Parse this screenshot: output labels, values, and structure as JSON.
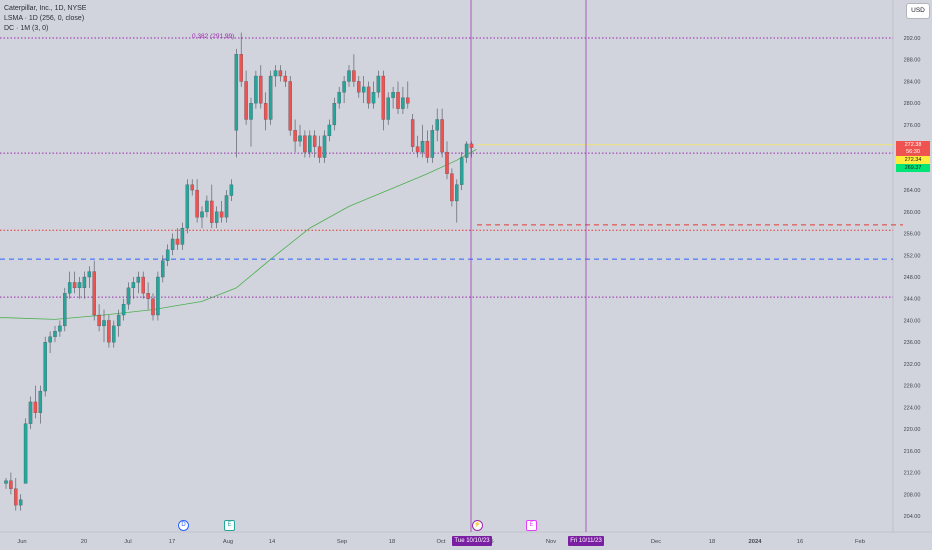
{
  "legend": {
    "symbol": "Caterpillar, Inc., 1D, NYSE",
    "indicator1": "LSMA · 1D (256, 0, close)",
    "indicator2": "DC · 1M (3, 0)"
  },
  "currency_button": "USD",
  "fib_label": "0.382 (291.99)",
  "price_axis": {
    "ticks": [
      "292.00",
      "288.00",
      "284.00",
      "280.00",
      "276.00",
      "272.00",
      "268.00",
      "264.00",
      "260.00",
      "256.00",
      "252.00",
      "248.00",
      "244.00",
      "240.00",
      "236.00",
      "232.00",
      "228.00",
      "224.00",
      "220.00",
      "216.00",
      "212.00",
      "208.00",
      "204.00"
    ],
    "tags": [
      {
        "text": "272.38",
        "bg": "#ef5350",
        "color": "#ffffff"
      },
      {
        "text": "56:30",
        "bg": "#ef5350",
        "color": "#ffffff"
      },
      {
        "text": "272.34",
        "bg": "#ffeb3b",
        "color": "#131722"
      },
      {
        "text": "269.37",
        "bg": "#00e676",
        "color": "#131722"
      }
    ]
  },
  "time_axis": {
    "ticks": [
      "Jun",
      "20",
      "Jul",
      "17",
      "Aug",
      "14",
      "Sep",
      "18",
      "Oct",
      "5",
      "Nov",
      "Dec",
      "18",
      "2024",
      "16",
      "Feb"
    ]
  },
  "crosshair_dates": [
    "Tue 10/10/23",
    "Fri 10/11/23"
  ],
  "event_markers": [
    "D",
    "E",
    "⚡",
    "E"
  ],
  "colors": {
    "background": "#d1d4dc",
    "candle_up": "#26a69a",
    "candle_down": "#ef5350",
    "lsma": "#4caf50",
    "fib": "#9c27b0",
    "dc_red": "#e53935",
    "dc_blue": "#2962ff"
  },
  "chart_data": {
    "type": "candlestick",
    "title": "Caterpillar, Inc., 1D, NYSE",
    "ylim": [
      202,
      294
    ],
    "horizontal_levels": [
      {
        "price": 291.99,
        "style": "dotted",
        "color": "#9c27b0"
      },
      {
        "price": 270.8,
        "style": "dotted",
        "color": "#9c27b0"
      },
      {
        "price": 256.6,
        "style": "dotted",
        "color": "#e53935"
      },
      {
        "price": 251.3,
        "style": "dashed",
        "color": "#2962ff"
      },
      {
        "price": 244.3,
        "style": "dotted",
        "color": "#9c27b0"
      },
      {
        "price": 257.6,
        "style": "dashed",
        "color": "#e53935",
        "partial": true
      }
    ],
    "candles": [
      [
        210,
        211,
        209,
        210.5
      ],
      [
        210.5,
        212,
        208,
        209
      ],
      [
        209,
        211,
        205,
        206
      ],
      [
        206,
        208,
        205,
        207
      ],
      [
        210,
        222,
        210,
        221
      ],
      [
        221,
        226,
        220,
        225
      ],
      [
        225,
        228,
        222,
        223
      ],
      [
        223,
        228,
        221,
        227
      ],
      [
        227,
        237,
        226,
        236
      ],
      [
        236,
        238,
        234,
        237
      ],
      [
        237,
        239,
        236,
        238
      ],
      [
        238,
        240,
        237,
        239
      ],
      [
        239,
        246,
        238,
        245
      ],
      [
        245,
        249,
        244,
        247
      ],
      [
        247,
        249,
        245,
        246
      ],
      [
        246,
        248,
        244,
        247
      ],
      [
        246,
        249,
        244,
        248
      ],
      [
        248,
        250,
        246,
        249
      ],
      [
        249,
        251,
        240,
        241
      ],
      [
        241,
        243,
        238,
        239
      ],
      [
        239,
        242,
        236,
        240
      ],
      [
        240,
        241,
        235,
        236
      ],
      [
        236,
        240,
        235,
        239
      ],
      [
        239,
        242,
        237,
        241
      ],
      [
        241,
        244,
        240,
        243
      ],
      [
        243,
        247,
        242,
        246
      ],
      [
        246,
        248,
        244,
        247
      ],
      [
        247,
        249,
        245,
        248
      ],
      [
        248,
        249,
        244,
        245
      ],
      [
        245,
        247,
        242,
        244
      ],
      [
        244,
        245,
        240,
        241
      ],
      [
        241,
        249,
        240,
        248
      ],
      [
        248,
        252,
        247,
        251
      ],
      [
        251,
        254,
        250,
        253
      ],
      [
        253,
        256,
        252,
        255
      ],
      [
        255,
        257,
        253,
        254
      ],
      [
        254,
        258,
        253,
        257
      ],
      [
        257,
        266,
        256,
        265
      ],
      [
        265,
        266,
        263,
        264
      ],
      [
        264,
        266,
        258,
        259
      ],
      [
        259,
        261,
        257,
        260
      ],
      [
        260,
        263,
        259,
        262
      ],
      [
        262,
        265,
        257,
        258
      ],
      [
        258,
        261,
        257,
        260
      ],
      [
        260,
        262,
        258,
        259
      ],
      [
        259,
        264,
        258,
        263
      ],
      [
        263,
        266,
        262,
        265
      ],
      [
        275,
        290,
        270,
        289
      ],
      [
        289,
        293,
        283,
        284
      ],
      [
        284,
        286,
        276,
        277
      ],
      [
        277,
        281,
        272,
        280
      ],
      [
        280,
        286,
        279,
        285
      ],
      [
        285,
        287,
        279,
        280
      ],
      [
        280,
        282,
        275,
        277
      ],
      [
        277,
        286,
        276,
        285
      ],
      [
        285,
        287,
        283,
        286
      ],
      [
        286,
        287,
        284,
        285
      ],
      [
        285,
        286,
        283,
        284
      ],
      [
        284,
        285,
        274,
        275
      ],
      [
        275,
        277,
        271,
        273
      ],
      [
        273,
        276,
        272,
        274
      ],
      [
        274,
        275,
        270,
        271
      ],
      [
        271,
        275,
        270,
        274
      ],
      [
        274,
        275,
        270,
        272
      ],
      [
        272,
        274,
        269,
        270
      ],
      [
        270,
        275,
        269,
        274
      ],
      [
        274,
        277,
        273,
        276
      ],
      [
        276,
        281,
        275,
        280
      ],
      [
        280,
        283,
        279,
        282
      ],
      [
        282,
        285,
        280,
        284
      ],
      [
        284,
        287,
        283,
        286
      ],
      [
        286,
        289,
        283,
        284
      ],
      [
        284,
        285,
        281,
        282
      ],
      [
        282,
        285,
        280,
        283
      ],
      [
        283,
        284,
        279,
        280
      ],
      [
        280,
        284,
        279,
        282
      ],
      [
        282,
        286,
        281,
        285
      ],
      [
        285,
        286,
        275,
        277
      ],
      [
        277,
        282,
        276,
        281
      ],
      [
        281,
        283,
        279,
        282
      ],
      [
        282,
        284,
        278,
        279
      ],
      [
        279,
        283,
        278,
        281
      ],
      [
        281,
        284,
        279,
        280
      ],
      [
        277,
        278,
        271,
        272
      ],
      [
        272,
        274,
        270,
        271
      ],
      [
        271,
        276,
        270,
        273
      ],
      [
        273,
        275,
        269,
        270
      ],
      [
        270,
        276,
        269,
        275
      ],
      [
        275,
        279,
        273,
        277
      ],
      [
        277,
        279,
        270,
        271
      ],
      [
        271,
        273,
        266,
        267
      ],
      [
        267,
        268,
        261,
        262
      ],
      [
        262,
        266,
        258,
        265
      ],
      [
        265,
        271,
        264,
        270
      ],
      [
        270,
        273,
        269,
        272.5
      ],
      [
        272.5,
        273,
        270,
        271.8
      ]
    ],
    "lsma": [
      [
        0,
        240.5
      ],
      [
        10,
        240.2
      ],
      [
        20,
        241
      ],
      [
        30,
        242
      ],
      [
        40,
        243.5
      ],
      [
        47,
        246
      ],
      [
        55,
        252
      ],
      [
        62,
        257
      ],
      [
        70,
        261
      ],
      [
        78,
        264
      ],
      [
        86,
        267
      ],
      [
        92,
        269.5
      ],
      [
        96,
        271.5
      ]
    ]
  }
}
